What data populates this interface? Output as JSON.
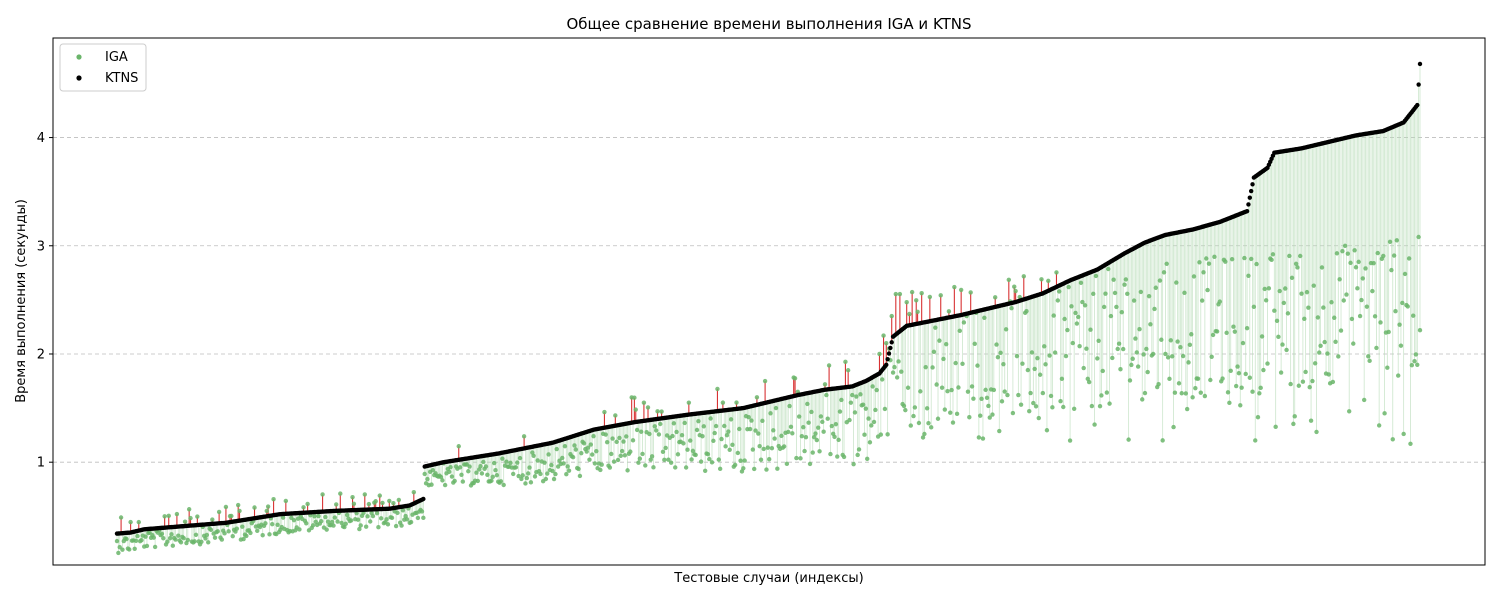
{
  "chart_data": {
    "type": "scatter",
    "title": "Общее сравнение времени выполнения IGA и KTNS",
    "xlabel": "Тестовые случаи (индексы)",
    "ylabel": "Время выполнения (секунды)",
    "yticks": [
      "1",
      "2",
      "3",
      "4"
    ],
    "ylim": [
      0.05,
      4.92
    ],
    "grid": "y-dashed",
    "legend_position": "top-left",
    "colors": {
      "iga": "#6ab56a",
      "ktns": "#000000",
      "connector_slower": "#d62728",
      "connector_faster": "#b7dcb7"
    },
    "x_note": "sorted by KTNS time; x ticks hidden",
    "ktns_anchors": [
      [
        0,
        0.34
      ],
      [
        10,
        0.35
      ],
      [
        20,
        0.38
      ],
      [
        40,
        0.4
      ],
      [
        60,
        0.42
      ],
      [
        80,
        0.44
      ],
      [
        100,
        0.48
      ],
      [
        120,
        0.52
      ],
      [
        160,
        0.55
      ],
      [
        200,
        0.57
      ],
      [
        215,
        0.6
      ],
      [
        225,
        0.66
      ],
      [
        226,
        0.96
      ],
      [
        240,
        1.0
      ],
      [
        280,
        1.08
      ],
      [
        320,
        1.18
      ],
      [
        350,
        1.3
      ],
      [
        380,
        1.37
      ],
      [
        420,
        1.44
      ],
      [
        460,
        1.5
      ],
      [
        480,
        1.56
      ],
      [
        500,
        1.62
      ],
      [
        520,
        1.67
      ],
      [
        540,
        1.7
      ],
      [
        550,
        1.75
      ],
      [
        560,
        1.82
      ],
      [
        565,
        1.9
      ],
      [
        570,
        2.16
      ],
      [
        580,
        2.26
      ],
      [
        600,
        2.31
      ],
      [
        620,
        2.36
      ],
      [
        640,
        2.42
      ],
      [
        660,
        2.48
      ],
      [
        680,
        2.56
      ],
      [
        700,
        2.68
      ],
      [
        720,
        2.78
      ],
      [
        740,
        2.93
      ],
      [
        755,
        3.03
      ],
      [
        770,
        3.1
      ],
      [
        790,
        3.15
      ],
      [
        810,
        3.22
      ],
      [
        830,
        3.32
      ],
      [
        835,
        3.63
      ],
      [
        845,
        3.72
      ],
      [
        850,
        3.86
      ],
      [
        870,
        3.9
      ],
      [
        890,
        3.96
      ],
      [
        910,
        4.02
      ],
      [
        930,
        4.06
      ],
      [
        945,
        4.14
      ],
      [
        955,
        4.3
      ],
      [
        957,
        4.68
      ]
    ],
    "ktns_n": 958,
    "iga_highlights": [
      [
        35,
        0.5
      ],
      [
        50,
        0.45
      ],
      [
        70,
        0.47
      ],
      [
        90,
        0.55
      ],
      [
        110,
        0.55
      ],
      [
        135,
        0.5
      ],
      [
        240,
        0.99
      ],
      [
        290,
        0.95
      ],
      [
        420,
        1.55
      ],
      [
        470,
        1.6
      ],
      [
        500,
        1.65
      ],
      [
        520,
        1.72
      ],
      [
        540,
        1.62
      ],
      [
        555,
        1.7
      ],
      [
        560,
        2.0
      ],
      [
        563,
        2.17
      ],
      [
        565,
        2.1
      ],
      [
        567,
        2.05
      ],
      [
        569,
        2.35
      ],
      [
        600,
        2.02
      ],
      [
        700,
        1.2
      ],
      [
        770,
        2.0
      ],
      [
        850,
        2.4
      ],
      [
        900,
        2.95
      ],
      [
        940,
        3.05
      ],
      [
        950,
        1.17
      ],
      [
        955,
        1.9
      ],
      [
        957,
        2.22
      ]
    ],
    "legend": [
      {
        "name": "IGA",
        "marker": "dot-green"
      },
      {
        "name": "KTNS",
        "marker": "dot-black"
      }
    ]
  }
}
